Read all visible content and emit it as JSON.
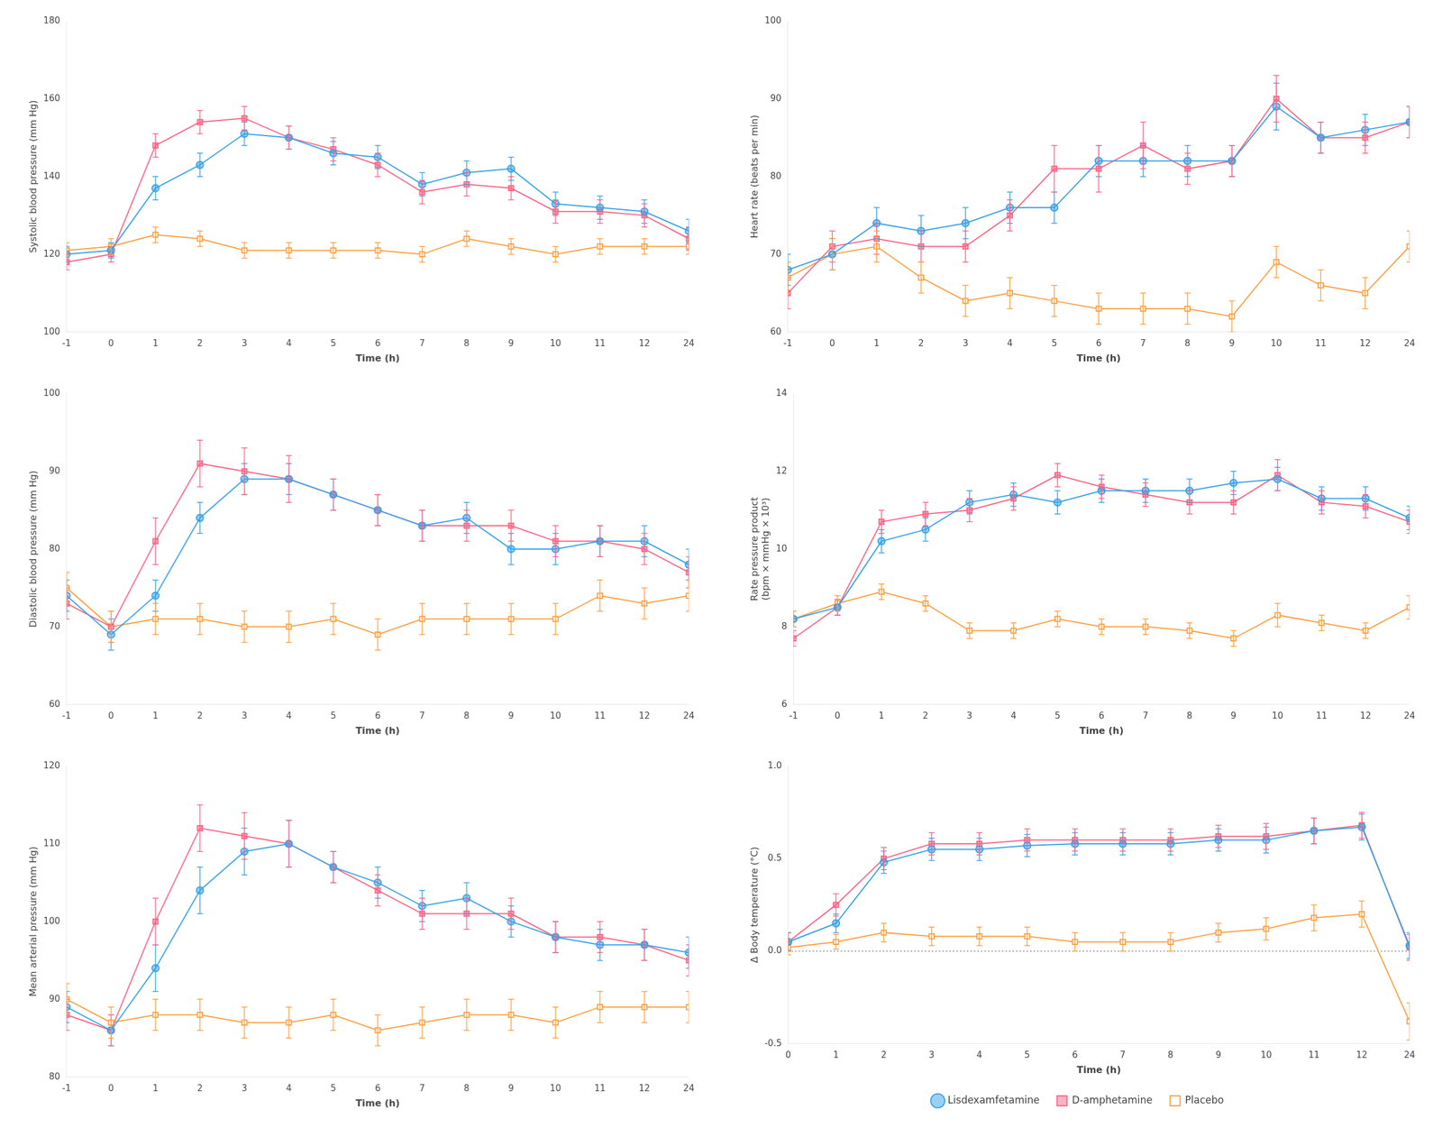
{
  "chart_data": [
    {
      "type": "line",
      "x_label": "Time (h)",
      "y_label": "Systolic blood pressure (mm Hg)",
      "categories": [
        -1,
        0,
        1,
        2,
        3,
        4,
        5,
        6,
        7,
        8,
        9,
        10,
        11,
        12,
        24
      ],
      "ylim": [
        100,
        180
      ],
      "yticks": [
        100,
        120,
        140,
        160,
        180
      ],
      "grid": false,
      "legend": false,
      "series": [
        {
          "name": "Lisdexamfetamine",
          "marker": "circle",
          "values": [
            120,
            121,
            137,
            143,
            151,
            150,
            146,
            145,
            138,
            141,
            142,
            133,
            132,
            131,
            126
          ],
          "errors": [
            2,
            2,
            3,
            3,
            3,
            3,
            3,
            3,
            3,
            3,
            3,
            3,
            3,
            3,
            3
          ]
        },
        {
          "name": "D-amphetamine",
          "marker": "square",
          "values": [
            118,
            120,
            148,
            154,
            155,
            150,
            147,
            143,
            136,
            138,
            137,
            131,
            131,
            130,
            124
          ],
          "errors": [
            2,
            2,
            3,
            3,
            3,
            3,
            3,
            3,
            3,
            3,
            3,
            3,
            3,
            3,
            3
          ]
        },
        {
          "name": "Placebo",
          "marker": "square_open",
          "values": [
            121,
            122,
            125,
            124,
            121,
            121,
            121,
            121,
            120,
            124,
            122,
            120,
            122,
            122,
            122
          ],
          "errors": [
            2,
            2,
            2,
            2,
            2,
            2,
            2,
            2,
            2,
            2,
            2,
            2,
            2,
            2,
            2
          ]
        }
      ]
    },
    {
      "type": "line",
      "x_label": "Time (h)",
      "y_label": "Heart rate (beats per min)",
      "categories": [
        -1,
        0,
        1,
        2,
        3,
        4,
        5,
        6,
        7,
        8,
        9,
        10,
        11,
        12,
        24
      ],
      "ylim": [
        60,
        100
      ],
      "yticks": [
        60,
        70,
        80,
        90,
        100
      ],
      "grid": false,
      "legend": false,
      "series": [
        {
          "name": "Lisdexamfetamine",
          "marker": "circle",
          "values": [
            68,
            70,
            74,
            73,
            74,
            76,
            76,
            82,
            82,
            82,
            82,
            89,
            85,
            86,
            87
          ],
          "errors": [
            2,
            2,
            2,
            2,
            2,
            2,
            2,
            2,
            2,
            2,
            2,
            3,
            2,
            2,
            2
          ]
        },
        {
          "name": "D-amphetamine",
          "marker": "square",
          "values": [
            65,
            71,
            72,
            71,
            71,
            75,
            81,
            81,
            84,
            81,
            82,
            90,
            85,
            85,
            87
          ],
          "errors": [
            2,
            2,
            2,
            2,
            2,
            2,
            3,
            3,
            3,
            2,
            2,
            3,
            2,
            2,
            2
          ]
        },
        {
          "name": "Placebo",
          "marker": "square_open",
          "values": [
            67,
            70,
            71,
            67,
            64,
            65,
            64,
            63,
            63,
            63,
            62,
            69,
            66,
            65,
            71
          ],
          "errors": [
            2,
            2,
            2,
            2,
            2,
            2,
            2,
            2,
            2,
            2,
            2,
            2,
            2,
            2,
            2
          ]
        }
      ]
    },
    {
      "type": "line",
      "x_label": "Time (h)",
      "y_label": "Diastolic blood pressure (mm Hg)",
      "categories": [
        -1,
        0,
        1,
        2,
        3,
        4,
        5,
        6,
        7,
        8,
        9,
        10,
        11,
        12,
        24
      ],
      "ylim": [
        60,
        100
      ],
      "yticks": [
        60,
        70,
        80,
        90,
        100
      ],
      "grid": false,
      "legend": false,
      "series": [
        {
          "name": "Lisdexamfetamine",
          "marker": "circle",
          "values": [
            74,
            69,
            74,
            84,
            89,
            89,
            87,
            85,
            83,
            84,
            80,
            80,
            81,
            81,
            78
          ],
          "errors": [
            2,
            2,
            2,
            2,
            2,
            2,
            2,
            2,
            2,
            2,
            2,
            2,
            2,
            2,
            2
          ]
        },
        {
          "name": "D-amphetamine",
          "marker": "square",
          "values": [
            73,
            70,
            81,
            91,
            90,
            89,
            87,
            85,
            83,
            83,
            83,
            81,
            81,
            80,
            77
          ],
          "errors": [
            2,
            2,
            3,
            3,
            3,
            3,
            2,
            2,
            2,
            2,
            2,
            2,
            2,
            2,
            2
          ]
        },
        {
          "name": "Placebo",
          "marker": "square_open",
          "values": [
            75,
            70,
            71,
            71,
            70,
            70,
            71,
            69,
            71,
            71,
            71,
            71,
            74,
            73,
            74
          ],
          "errors": [
            2,
            2,
            2,
            2,
            2,
            2,
            2,
            2,
            2,
            2,
            2,
            2,
            2,
            2,
            2
          ]
        }
      ]
    },
    {
      "type": "line",
      "x_label": "Time (h)",
      "y_label": "Rate pressure product\n(bpm × mmHg × 10³)",
      "categories": [
        -1,
        0,
        1,
        2,
        3,
        4,
        5,
        6,
        7,
        8,
        9,
        10,
        11,
        12,
        24
      ],
      "ylim": [
        6,
        14
      ],
      "yticks": [
        6,
        8,
        10,
        12,
        14
      ],
      "grid": false,
      "legend": false,
      "series": [
        {
          "name": "Lisdexamfetamine",
          "marker": "circle",
          "values": [
            8.2,
            8.5,
            10.2,
            10.5,
            11.2,
            11.4,
            11.2,
            11.5,
            11.5,
            11.5,
            11.7,
            11.8,
            11.3,
            11.3,
            10.8
          ],
          "errors": [
            0.2,
            0.2,
            0.3,
            0.3,
            0.3,
            0.3,
            0.3,
            0.3,
            0.3,
            0.3,
            0.3,
            0.3,
            0.3,
            0.3,
            0.3
          ]
        },
        {
          "name": "D-amphetamine",
          "marker": "square",
          "values": [
            7.7,
            8.5,
            10.7,
            10.9,
            11.0,
            11.3,
            11.9,
            11.6,
            11.4,
            11.2,
            11.2,
            11.9,
            11.2,
            11.1,
            10.7
          ],
          "errors": [
            0.2,
            0.2,
            0.3,
            0.3,
            0.3,
            0.3,
            0.3,
            0.3,
            0.3,
            0.3,
            0.3,
            0.4,
            0.3,
            0.3,
            0.3
          ]
        },
        {
          "name": "Placebo",
          "marker": "square_open",
          "values": [
            8.2,
            8.6,
            8.9,
            8.6,
            7.9,
            7.9,
            8.2,
            8.0,
            8.0,
            7.9,
            7.7,
            8.3,
            8.1,
            7.9,
            8.5
          ],
          "errors": [
            0.2,
            0.2,
            0.2,
            0.2,
            0.2,
            0.2,
            0.2,
            0.2,
            0.2,
            0.2,
            0.2,
            0.3,
            0.2,
            0.2,
            0.3
          ]
        }
      ]
    },
    {
      "type": "line",
      "x_label": "Time (h)",
      "y_label": "Mean arterial pressure (mm Hg)",
      "categories": [
        -1,
        0,
        1,
        2,
        3,
        4,
        5,
        6,
        7,
        8,
        9,
        10,
        11,
        12,
        24
      ],
      "ylim": [
        80,
        120
      ],
      "yticks": [
        80,
        90,
        100,
        110,
        120
      ],
      "grid": false,
      "legend": false,
      "series": [
        {
          "name": "Lisdexamfetamine",
          "marker": "circle",
          "values": [
            89,
            86,
            94,
            104,
            109,
            110,
            107,
            105,
            102,
            103,
            100,
            98,
            97,
            97,
            96
          ],
          "errors": [
            2,
            2,
            3,
            3,
            3,
            3,
            2,
            2,
            2,
            2,
            2,
            2,
            2,
            2,
            2
          ]
        },
        {
          "name": "D-amphetamine",
          "marker": "square",
          "values": [
            88,
            86,
            100,
            112,
            111,
            110,
            107,
            104,
            101,
            101,
            101,
            98,
            98,
            97,
            95
          ],
          "errors": [
            2,
            2,
            3,
            3,
            3,
            3,
            2,
            2,
            2,
            2,
            2,
            2,
            2,
            2,
            2
          ]
        },
        {
          "name": "Placebo",
          "marker": "square_open",
          "values": [
            90,
            87,
            88,
            88,
            87,
            87,
            88,
            86,
            87,
            88,
            88,
            87,
            89,
            89,
            89
          ],
          "errors": [
            2,
            2,
            2,
            2,
            2,
            2,
            2,
            2,
            2,
            2,
            2,
            2,
            2,
            2,
            2
          ]
        }
      ]
    },
    {
      "type": "line",
      "x_label": "Time (h)",
      "y_label": "Δ Body temperature (°C)",
      "categories": [
        0,
        1,
        2,
        3,
        4,
        5,
        6,
        7,
        8,
        9,
        10,
        11,
        12,
        24
      ],
      "ylim": [
        -0.5,
        1.0
      ],
      "yticks": [
        -0.5,
        {
          "value": 0,
          "label": "0.0"
        },
        0.5,
        {
          "value": 1,
          "label": "1.0"
        }
      ],
      "grid": false,
      "legend": "bottom",
      "hlines": [
        0
      ],
      "series": [
        {
          "name": "Lisdexamfetamine",
          "marker": "circle",
          "values": [
            0.05,
            0.15,
            0.48,
            0.55,
            0.55,
            0.57,
            0.58,
            0.58,
            0.58,
            0.6,
            0.6,
            0.65,
            0.67,
            0.03
          ],
          "errors": [
            0.05,
            0.05,
            0.06,
            0.06,
            0.06,
            0.06,
            0.06,
            0.06,
            0.06,
            0.06,
            0.07,
            0.07,
            0.07,
            0.07
          ]
        },
        {
          "name": "D-amphetamine",
          "marker": "square",
          "values": [
            0.05,
            0.25,
            0.5,
            0.58,
            0.58,
            0.6,
            0.6,
            0.6,
            0.6,
            0.62,
            0.62,
            0.65,
            0.68,
            0.02
          ],
          "errors": [
            0.05,
            0.06,
            0.06,
            0.06,
            0.06,
            0.06,
            0.06,
            0.06,
            0.06,
            0.06,
            0.07,
            0.07,
            0.07,
            0.07
          ]
        },
        {
          "name": "Placebo",
          "marker": "square_open",
          "values": [
            0.02,
            0.05,
            0.1,
            0.08,
            0.08,
            0.08,
            0.05,
            0.05,
            0.05,
            0.1,
            0.12,
            0.18,
            0.2,
            -0.38
          ],
          "errors": [
            0.04,
            0.04,
            0.05,
            0.05,
            0.05,
            0.05,
            0.05,
            0.05,
            0.05,
            0.05,
            0.06,
            0.07,
            0.07,
            0.1
          ]
        }
      ]
    }
  ]
}
